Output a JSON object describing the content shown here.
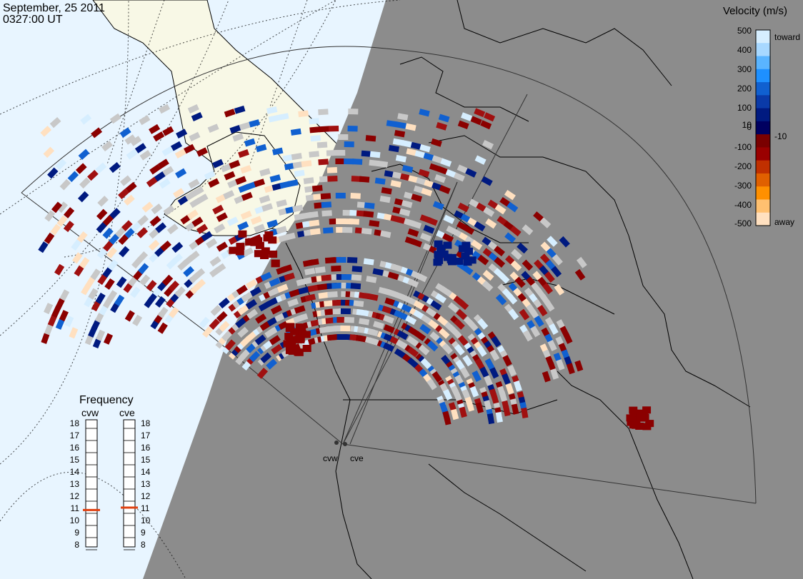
{
  "header": {
    "date": "September, 25 2011",
    "time": "0327:00 UT"
  },
  "colorbar": {
    "title": "Velocity (m/s)",
    "ticks": [
      "500",
      "400",
      "300",
      "200",
      "100",
      "10",
      "0",
      "-10",
      "-100",
      "-200",
      "-300",
      "-400",
      "-500"
    ],
    "toward_label": "toward",
    "away_label": "away",
    "colors": [
      "#d6eeff",
      "#a8d8ff",
      "#5ab4ff",
      "#1e90ff",
      "#1060d0",
      "#0a3aa8",
      "#001a80",
      "#000060",
      "#7a0000",
      "#9a0000",
      "#c03000",
      "#e06000",
      "#ff9000",
      "#ffc070",
      "#ffe0c0"
    ]
  },
  "frequency": {
    "title": "Frequency",
    "radars": [
      {
        "name": "cvw",
        "value": 10.8
      },
      {
        "name": "cve",
        "value": 11.0
      }
    ],
    "scale": [
      "18",
      "17",
      "16",
      "15",
      "14",
      "13",
      "12",
      "11",
      "10",
      "9",
      "8"
    ]
  },
  "radar_sites": [
    "cvw",
    "cve"
  ],
  "colors": {
    "land_night": "#8c8c8c",
    "land_day": "#f8f8e6",
    "ocean_day": "#e8f5ff",
    "ground_scatter": "#c8c8c8",
    "away_dark": "#8b0000",
    "toward_dark": "#001a80"
  }
}
